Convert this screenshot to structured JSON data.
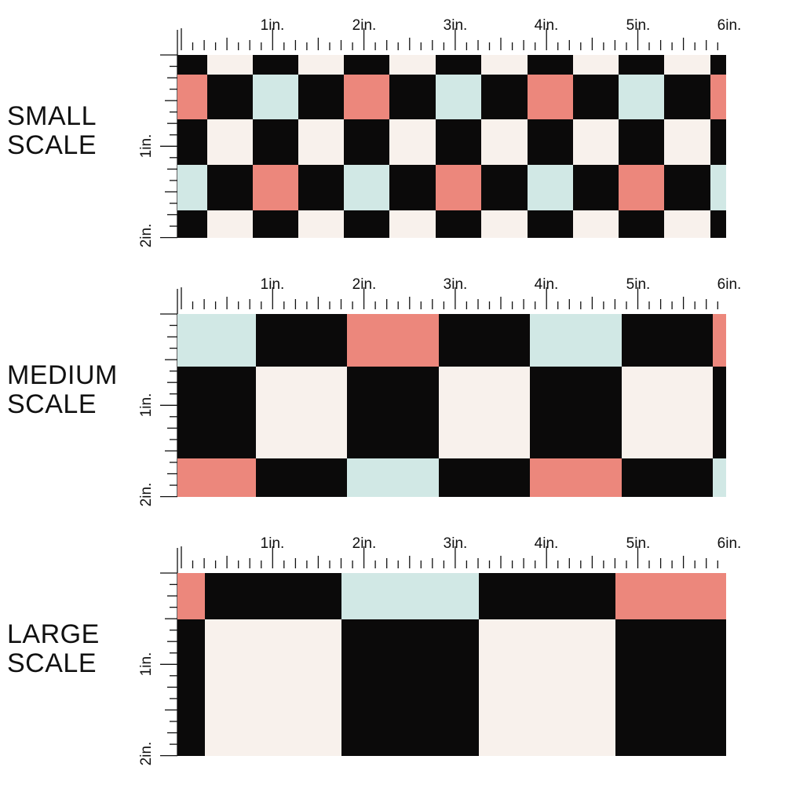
{
  "colors": {
    "black": "#0b0a0a",
    "cream": "#f8f1ec",
    "mint": "#d1e8e5",
    "coral": "#ec877c"
  },
  "panels": [
    {
      "label_line1": "SMALL",
      "label_line2": "SCALE",
      "top_ruler": [
        "1in.",
        "2in.",
        "3in.",
        "4in.",
        "5in.",
        "6in."
      ],
      "side_ruler": [
        "1in.",
        "2in."
      ],
      "pattern": "small"
    },
    {
      "label_line1": "MEDIUM",
      "label_line2": "SCALE",
      "top_ruler": [
        "1in.",
        "2in.",
        "3in.",
        "4in.",
        "5in.",
        "6in."
      ],
      "side_ruler": [
        "1in.",
        "2in."
      ],
      "pattern": "medium"
    },
    {
      "label_line1": "LARGE",
      "label_line2": "SCALE",
      "top_ruler": [
        "1in.",
        "2in.",
        "3in.",
        "4in.",
        "5in.",
        "6in."
      ],
      "side_ruler": [
        "1in.",
        "2in."
      ],
      "pattern": "large"
    }
  ]
}
